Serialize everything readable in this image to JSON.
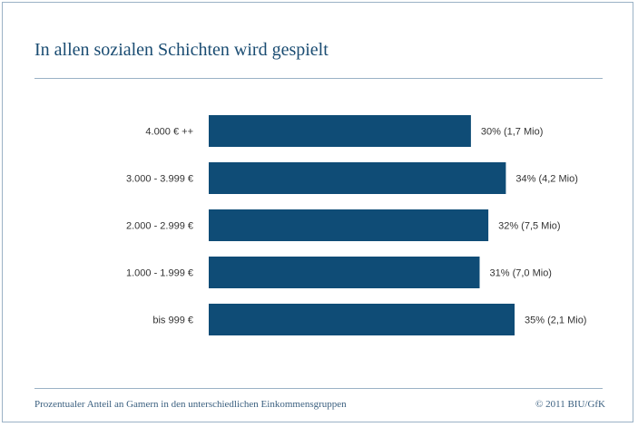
{
  "title": "In allen sozialen Schichten wird gespielt",
  "footer": {
    "caption": "Prozentualer Anteil an Gamern in den unterschiedlichen Einkommensgruppen",
    "copyright": "© 2011 BIU/GfK"
  },
  "colors": {
    "bar": "#0f4c76",
    "text": "#333333",
    "title": "#1a4c72"
  },
  "chart_data": {
    "type": "bar",
    "orientation": "horizontal",
    "categories": [
      "4.000 € ++",
      "3.000 - 3.999 €",
      "2.000 - 2.999 €",
      "1.000 - 1.999 €",
      "bis 999 €"
    ],
    "values": [
      30,
      34,
      32,
      31,
      35
    ],
    "data_labels": [
      "30% (1,7 Mio)",
      "34% (4,2 Mio)",
      "32% (7,5 Mio)",
      "31% (7,0 Mio)",
      "35% (2,1 Mio)"
    ],
    "unit": "%",
    "xlim": [
      0,
      35
    ],
    "grid": false,
    "legend": "none"
  }
}
